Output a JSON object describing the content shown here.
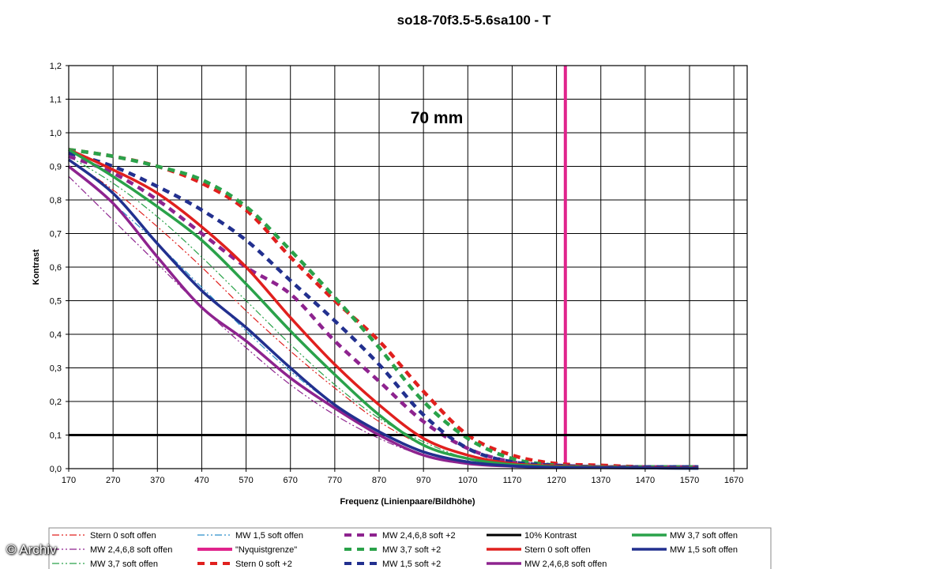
{
  "watermark": "© Archiv",
  "chart_data": {
    "type": "line",
    "title": "so18-70f3.5-5.6sa100 - T",
    "xlabel": "Frequenz (Linienpaare/Bildhöhe)",
    "ylabel": "Kontrast",
    "annotation": "70 mm",
    "xlim": [
      170,
      1700
    ],
    "ylim": [
      0,
      1.2
    ],
    "xticks": [
      170,
      270,
      370,
      470,
      570,
      670,
      770,
      870,
      970,
      1070,
      1170,
      1270,
      1370,
      1470,
      1570,
      1670
    ],
    "yticks": [
      "0,0",
      "0,1",
      "0,2",
      "0,3",
      "0,4",
      "0,5",
      "0,6",
      "0,7",
      "0,8",
      "0,9",
      "1,0",
      "1,1",
      "1,2"
    ],
    "grid": true,
    "legend_position": "bottom",
    "series": [
      {
        "name": "Stern 0 soft offen",
        "style": "dashdotdot",
        "color": "#e0201e",
        "x": [
          170,
          270,
          370,
          470,
          570,
          670,
          770,
          870,
          970,
          1070,
          1170,
          1270
        ],
        "y": [
          0.92,
          0.83,
          0.72,
          0.6,
          0.47,
          0.35,
          0.24,
          0.14,
          0.07,
          0.03,
          0.01,
          0.005
        ]
      },
      {
        "name": "MW 2,4,6,8 soft offen",
        "style": "dashdotdot",
        "color": "#8e238f",
        "x": [
          170,
          270,
          370,
          470,
          570,
          670,
          770,
          870,
          970,
          1070,
          1170,
          1270
        ],
        "y": [
          0.87,
          0.74,
          0.61,
          0.48,
          0.36,
          0.25,
          0.16,
          0.09,
          0.04,
          0.02,
          0.01,
          0.005
        ]
      },
      {
        "name": "MW 3,7 soft offen",
        "style": "dashdotdot",
        "color": "#2aa24a",
        "x": [
          170,
          270,
          370,
          470,
          570,
          670,
          770,
          870,
          970,
          1070,
          1170,
          1270
        ],
        "y": [
          0.93,
          0.85,
          0.75,
          0.63,
          0.5,
          0.37,
          0.25,
          0.15,
          0.08,
          0.03,
          0.01,
          0.005
        ]
      },
      {
        "name": "MW 1,5 soft offen",
        "style": "dashdotdot",
        "color": "#2b8fc9",
        "x": [
          170,
          270,
          370,
          470,
          570,
          670,
          770,
          870,
          970,
          1070,
          1170,
          1270
        ],
        "y": [
          0.9,
          0.79,
          0.67,
          0.54,
          0.41,
          0.29,
          0.19,
          0.11,
          0.05,
          0.02,
          0.01,
          0.005
        ]
      },
      {
        "name": "\"Nyquistgrenze\"",
        "style": "vline",
        "color": "#e0248c",
        "x": [
          1290,
          1290
        ],
        "y": [
          0,
          1.2
        ]
      },
      {
        "name": "Stern 0 soft +2",
        "style": "dash",
        "color": "#e0201e",
        "x": [
          170,
          270,
          370,
          470,
          570,
          670,
          770,
          870,
          970,
          1070,
          1170,
          1270,
          1370,
          1470,
          1590
        ],
        "y": [
          0.95,
          0.93,
          0.9,
          0.85,
          0.77,
          0.63,
          0.5,
          0.38,
          0.23,
          0.1,
          0.04,
          0.015,
          0.01,
          0.005,
          0.005
        ]
      },
      {
        "name": "MW 2,4,6,8 soft +2",
        "style": "dash",
        "color": "#8e238f",
        "x": [
          170,
          270,
          370,
          470,
          570,
          670,
          770,
          870,
          970,
          1070,
          1170,
          1270,
          1370,
          1470,
          1590
        ],
        "y": [
          0.93,
          0.88,
          0.8,
          0.7,
          0.6,
          0.52,
          0.38,
          0.26,
          0.14,
          0.06,
          0.02,
          0.01,
          0.005,
          0.005,
          0.005
        ]
      },
      {
        "name": "MW 3,7 soft +2",
        "style": "dash",
        "color": "#2aa24a",
        "x": [
          170,
          270,
          370,
          470,
          570,
          670,
          770,
          870,
          970,
          1070,
          1170,
          1270,
          1370,
          1470,
          1590
        ],
        "y": [
          0.95,
          0.93,
          0.9,
          0.86,
          0.78,
          0.65,
          0.51,
          0.36,
          0.2,
          0.09,
          0.03,
          0.01,
          0.005,
          0.005,
          0.005
        ]
      },
      {
        "name": "MW 1,5 soft +2",
        "style": "dash",
        "color": "#22308f",
        "x": [
          170,
          270,
          370,
          470,
          570,
          670,
          770,
          870,
          970,
          1070,
          1170,
          1270,
          1370,
          1470,
          1590
        ],
        "y": [
          0.94,
          0.9,
          0.84,
          0.77,
          0.68,
          0.56,
          0.44,
          0.31,
          0.16,
          0.06,
          0.02,
          0.01,
          0.005,
          0.005,
          0.005
        ]
      },
      {
        "name": "10% Kontrast",
        "style": "hline",
        "color": "#000000",
        "x": [
          170,
          1700
        ],
        "y": [
          0.1,
          0.1
        ]
      },
      {
        "name": "Stern 0 soft offen",
        "style": "solid",
        "color": "#e0201e",
        "x": [
          170,
          270,
          370,
          470,
          570,
          670,
          770,
          870,
          970,
          1070,
          1170,
          1270,
          1370,
          1470,
          1590
        ],
        "y": [
          0.95,
          0.89,
          0.82,
          0.72,
          0.6,
          0.45,
          0.31,
          0.19,
          0.09,
          0.04,
          0.015,
          0.008,
          0.005,
          0.003,
          0.002
        ]
      },
      {
        "name": "MW 2,4,6,8 soft offen",
        "style": "solid",
        "color": "#8e238f",
        "x": [
          170,
          270,
          370,
          470,
          570,
          670,
          770,
          870,
          970,
          1070,
          1170,
          1270,
          1370,
          1470,
          1590
        ],
        "y": [
          0.9,
          0.79,
          0.63,
          0.48,
          0.38,
          0.27,
          0.18,
          0.1,
          0.04,
          0.015,
          0.007,
          0.004,
          0.003,
          0.002,
          0.001
        ]
      },
      {
        "name": "MW 3,7 soft offen",
        "style": "solid",
        "color": "#2aa24a",
        "x": [
          170,
          270,
          370,
          470,
          570,
          670,
          770,
          870,
          970,
          1070,
          1170,
          1270,
          1370,
          1470,
          1590
        ],
        "y": [
          0.95,
          0.87,
          0.78,
          0.68,
          0.55,
          0.41,
          0.28,
          0.16,
          0.07,
          0.03,
          0.012,
          0.006,
          0.004,
          0.002,
          0.001
        ]
      },
      {
        "name": "MW 1,5 soft offen",
        "style": "solid",
        "color": "#22308f",
        "x": [
          170,
          270,
          370,
          470,
          570,
          670,
          770,
          870,
          970,
          1070,
          1170,
          1270,
          1370,
          1470,
          1590
        ],
        "y": [
          0.92,
          0.82,
          0.67,
          0.53,
          0.42,
          0.3,
          0.19,
          0.11,
          0.05,
          0.02,
          0.008,
          0.004,
          0.003,
          0.002,
          0.001
        ]
      }
    ]
  }
}
